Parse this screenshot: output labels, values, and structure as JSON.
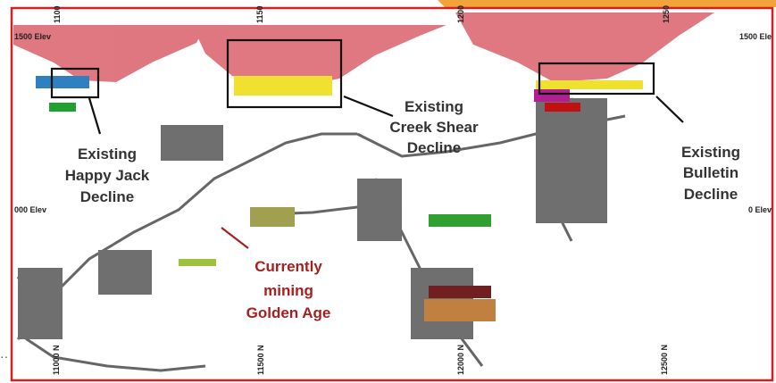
{
  "grid_labels": {
    "top": [
      "1100",
      "1150",
      "1200",
      "1250"
    ],
    "bottom": [
      "11000 N",
      "11500 N",
      "12000 N",
      "12500 N"
    ],
    "elevations": [
      "1500 Elev",
      "1500 Ele",
      "000 Elev",
      "0 Elev"
    ]
  },
  "callouts": [
    {
      "lines": [
        "Existing",
        "Happy Jack",
        "Decline"
      ]
    },
    {
      "lines": [
        "Existing",
        "Creek Shear",
        "Decline"
      ]
    },
    {
      "lines": [
        "Existing",
        "Bulletin",
        "Decline"
      ]
    },
    {
      "lines": [
        "Currently",
        "mining",
        "Golden Age"
      ]
    }
  ]
}
